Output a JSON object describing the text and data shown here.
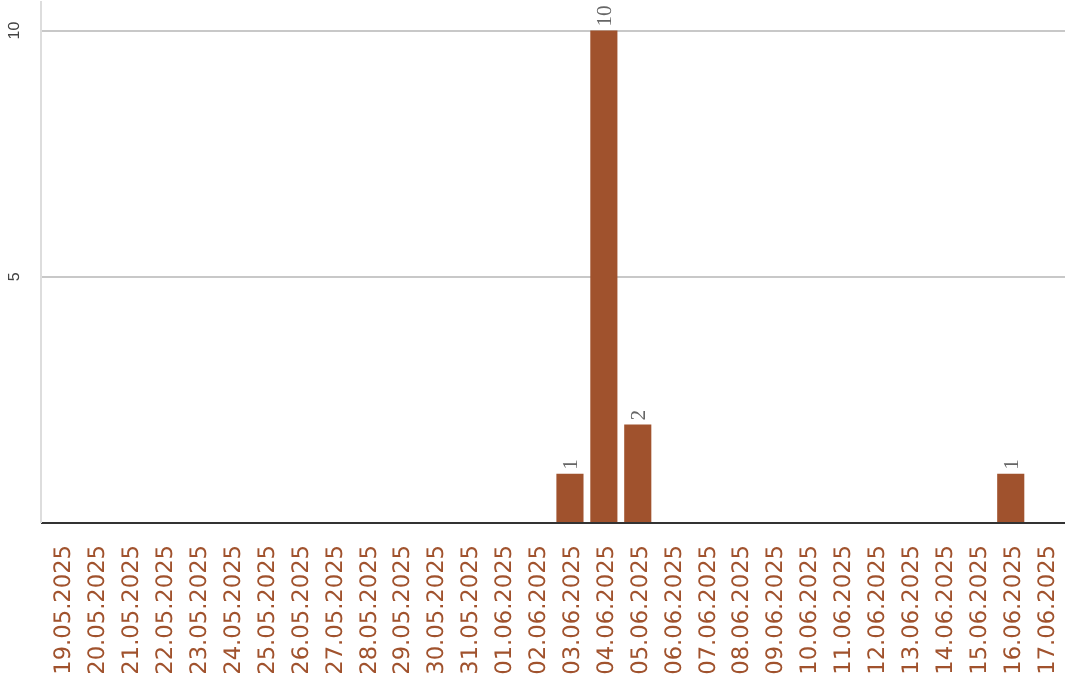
{
  "chart_data": {
    "type": "bar",
    "categories": [
      "19.05.2025",
      "20.05.2025",
      "21.05.2025",
      "22.05.2025",
      "23.05.2025",
      "24.05.2025",
      "25.05.2025",
      "26.05.2025",
      "27.05.2025",
      "28.05.2025",
      "29.05.2025",
      "30.05.2025",
      "31.05.2025",
      "01.06.2025",
      "02.06.2025",
      "03.06.2025",
      "04.06.2025",
      "05.06.2025",
      "06.06.2025",
      "07.06.2025",
      "08.06.2025",
      "09.06.2025",
      "10.06.2025",
      "11.06.2025",
      "12.06.2025",
      "13.06.2025",
      "14.06.2025",
      "15.06.2025",
      "16.06.2025",
      "17.06.2025"
    ],
    "values": [
      0,
      0,
      0,
      0,
      0,
      0,
      0,
      0,
      0,
      0,
      0,
      0,
      0,
      0,
      0,
      1,
      10,
      2,
      0,
      0,
      0,
      0,
      0,
      0,
      0,
      0,
      0,
      0,
      1,
      0
    ],
    "value_labels": [
      null,
      null,
      null,
      null,
      null,
      null,
      null,
      null,
      null,
      null,
      null,
      null,
      null,
      null,
      null,
      "1",
      "10",
      "2",
      null,
      null,
      null,
      null,
      null,
      null,
      null,
      null,
      null,
      null,
      "1",
      null
    ],
    "color": "#a0522d",
    "ylim": [
      0,
      10.6
    ],
    "yticks": [
      5,
      10
    ],
    "grid": "y"
  }
}
